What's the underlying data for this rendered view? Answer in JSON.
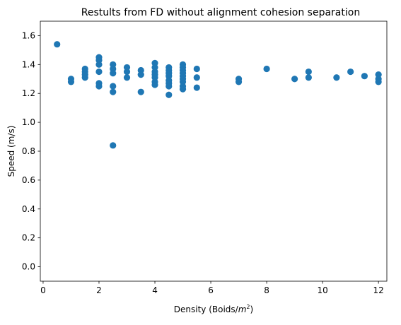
{
  "chart_data": {
    "type": "scatter",
    "title": "Restults from FD without alignment cohesion separation",
    "xlabel_main": "Density (Boids/",
    "xlabel_unit": "m",
    "xlabel_exp": "2",
    "xlabel_close": ")",
    "ylabel": "Speed (m/s)",
    "xlim": [
      -0.1,
      12.3
    ],
    "ylim": [
      -0.1,
      1.7
    ],
    "xticks": [
      0,
      2,
      4,
      6,
      8,
      10,
      12
    ],
    "xtick_labels": [
      "0",
      "2",
      "4",
      "6",
      "8",
      "10",
      "12"
    ],
    "yticks": [
      0.0,
      0.2,
      0.4,
      0.6,
      0.8,
      1.0,
      1.2,
      1.4,
      1.6
    ],
    "ytick_labels": [
      "0.0",
      "0.2",
      "0.4",
      "0.6",
      "0.8",
      "1.0",
      "1.2",
      "1.4",
      "1.6"
    ],
    "grid": false,
    "marker_color": "#1f77b4",
    "points": [
      [
        0.5,
        1.54
      ],
      [
        1.0,
        1.3
      ],
      [
        1.0,
        1.28
      ],
      [
        1.5,
        1.37
      ],
      [
        1.5,
        1.35
      ],
      [
        1.5,
        1.33
      ],
      [
        1.5,
        1.31
      ],
      [
        2.0,
        1.45
      ],
      [
        2.0,
        1.43
      ],
      [
        2.0,
        1.4
      ],
      [
        2.0,
        1.35
      ],
      [
        2.0,
        1.27
      ],
      [
        2.0,
        1.25
      ],
      [
        2.5,
        1.4
      ],
      [
        2.5,
        1.37
      ],
      [
        2.5,
        1.34
      ],
      [
        2.5,
        1.25
      ],
      [
        2.5,
        1.21
      ],
      [
        2.5,
        0.84
      ],
      [
        3.0,
        1.38
      ],
      [
        3.0,
        1.35
      ],
      [
        3.0,
        1.31
      ],
      [
        3.5,
        1.36
      ],
      [
        3.5,
        1.33
      ],
      [
        3.5,
        1.21
      ],
      [
        4.0,
        1.41
      ],
      [
        4.0,
        1.38
      ],
      [
        4.0,
        1.35
      ],
      [
        4.0,
        1.33
      ],
      [
        4.0,
        1.31
      ],
      [
        4.0,
        1.28
      ],
      [
        4.0,
        1.26
      ],
      [
        4.5,
        1.38
      ],
      [
        4.5,
        1.36
      ],
      [
        4.5,
        1.34
      ],
      [
        4.5,
        1.32
      ],
      [
        4.5,
        1.29
      ],
      [
        4.5,
        1.27
      ],
      [
        4.5,
        1.25
      ],
      [
        4.5,
        1.19
      ],
      [
        5.0,
        1.4
      ],
      [
        5.0,
        1.38
      ],
      [
        5.0,
        1.36
      ],
      [
        5.0,
        1.34
      ],
      [
        5.0,
        1.32
      ],
      [
        5.0,
        1.3
      ],
      [
        5.0,
        1.28
      ],
      [
        5.0,
        1.25
      ],
      [
        5.0,
        1.23
      ],
      [
        5.5,
        1.37
      ],
      [
        5.5,
        1.31
      ],
      [
        5.5,
        1.24
      ],
      [
        7.0,
        1.3
      ],
      [
        7.0,
        1.28
      ],
      [
        8.0,
        1.37
      ],
      [
        9.0,
        1.3
      ],
      [
        9.5,
        1.35
      ],
      [
        9.5,
        1.31
      ],
      [
        10.5,
        1.31
      ],
      [
        11.0,
        1.35
      ],
      [
        11.5,
        1.32
      ],
      [
        12.0,
        1.33
      ],
      [
        12.0,
        1.3
      ],
      [
        12.0,
        1.28
      ]
    ]
  }
}
